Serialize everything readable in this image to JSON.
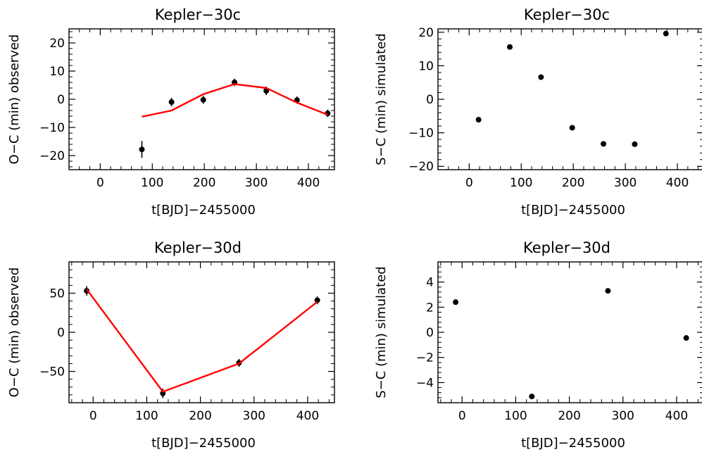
{
  "chart_data": [
    {
      "type": "scatter",
      "title": "Kepler−30c",
      "xlabel": "t[BJD]−2455000",
      "ylabel": "O−C (min) observed",
      "xlim": [
        -60,
        450
      ],
      "ylim": [
        -25,
        25
      ],
      "xticks": [
        0,
        100,
        200,
        300,
        400
      ],
      "xtick_labels": [
        "0",
        "100",
        "200",
        "300",
        "400"
      ],
      "yticks": [
        -20,
        -10,
        0,
        10,
        20
      ],
      "ytick_labels": [
        "−20",
        "−10",
        "0",
        "10",
        "20"
      ],
      "series": [
        {
          "kind": "points-with-errorbars",
          "color": "#000000",
          "x": [
            80,
            137,
            198,
            258,
            319,
            378,
            437
          ],
          "y": [
            -17.8,
            -1.0,
            -0.2,
            6.0,
            3.0,
            -0.3,
            -5.0
          ],
          "yerr": [
            3.0,
            1.5,
            1.4,
            1.3,
            1.5,
            1.3,
            1.3
          ]
        },
        {
          "kind": "line",
          "color": "#ff0000",
          "x": [
            80,
            137,
            198,
            258,
            319,
            378,
            437
          ],
          "y": [
            -6.2,
            -4.0,
            1.8,
            5.4,
            4.0,
            -1.2,
            -5.5
          ]
        }
      ]
    },
    {
      "type": "scatter",
      "title": "Kepler−30c",
      "xlabel": "t[BJD]−2455000",
      "ylabel": "S−C (min) simulated",
      "xlim": [
        -60,
        450
      ],
      "ylim": [
        -21,
        21
      ],
      "xticks": [
        0,
        100,
        200,
        300,
        400
      ],
      "xtick_labels": [
        "0",
        "100",
        "200",
        "300",
        "400"
      ],
      "yticks": [
        -20,
        -10,
        0,
        10,
        20
      ],
      "ytick_labels": [
        "−20",
        "−10",
        "0",
        "10",
        "20"
      ],
      "series": [
        {
          "kind": "points",
          "color": "#000000",
          "x": [
            18,
            78,
            138,
            198,
            258,
            318,
            378
          ],
          "y": [
            -6.1,
            15.6,
            6.6,
            -8.5,
            -13.3,
            -13.4,
            19.6
          ]
        }
      ]
    },
    {
      "type": "scatter",
      "title": "Kepler−30d",
      "xlabel": "t[BJD]−2455000",
      "ylabel": "O−C (min) observed",
      "xlim": [
        -45,
        450
      ],
      "ylim": [
        -90,
        90
      ],
      "xticks": [
        0,
        100,
        200,
        300,
        400
      ],
      "xtick_labels": [
        "0",
        "100",
        "200",
        "300",
        "400"
      ],
      "yticks": [
        -50,
        0,
        50
      ],
      "ytick_labels": [
        "−50",
        "0",
        "50"
      ],
      "series": [
        {
          "kind": "points-with-errorbars",
          "color": "#000000",
          "x": [
            -12,
            130,
            272,
            418
          ],
          "y": [
            53,
            -78,
            -39,
            41
          ],
          "yerr": [
            6,
            6,
            5,
            5
          ]
        },
        {
          "kind": "line",
          "color": "#ff0000",
          "x": [
            -12,
            130,
            272,
            418
          ],
          "y": [
            55,
            -76,
            -40,
            39
          ]
        }
      ]
    },
    {
      "type": "scatter",
      "title": "Kepler−30d",
      "xlabel": "t[BJD]−2455000",
      "ylabel": "S−C (min) simulated",
      "xlim": [
        -45,
        450
      ],
      "ylim": [
        -5.6,
        5.6
      ],
      "xticks": [
        0,
        100,
        200,
        300,
        400
      ],
      "xtick_labels": [
        "0",
        "100",
        "200",
        "300",
        "400"
      ],
      "yticks": [
        -4,
        -2,
        0,
        2,
        4
      ],
      "ytick_labels": [
        "−4",
        "−2",
        "0",
        "2",
        "4"
      ],
      "series": [
        {
          "kind": "points",
          "color": "#000000",
          "x": [
            -12,
            130,
            272,
            418
          ],
          "y": [
            2.4,
            -5.1,
            3.3,
            -0.45
          ]
        }
      ]
    }
  ]
}
